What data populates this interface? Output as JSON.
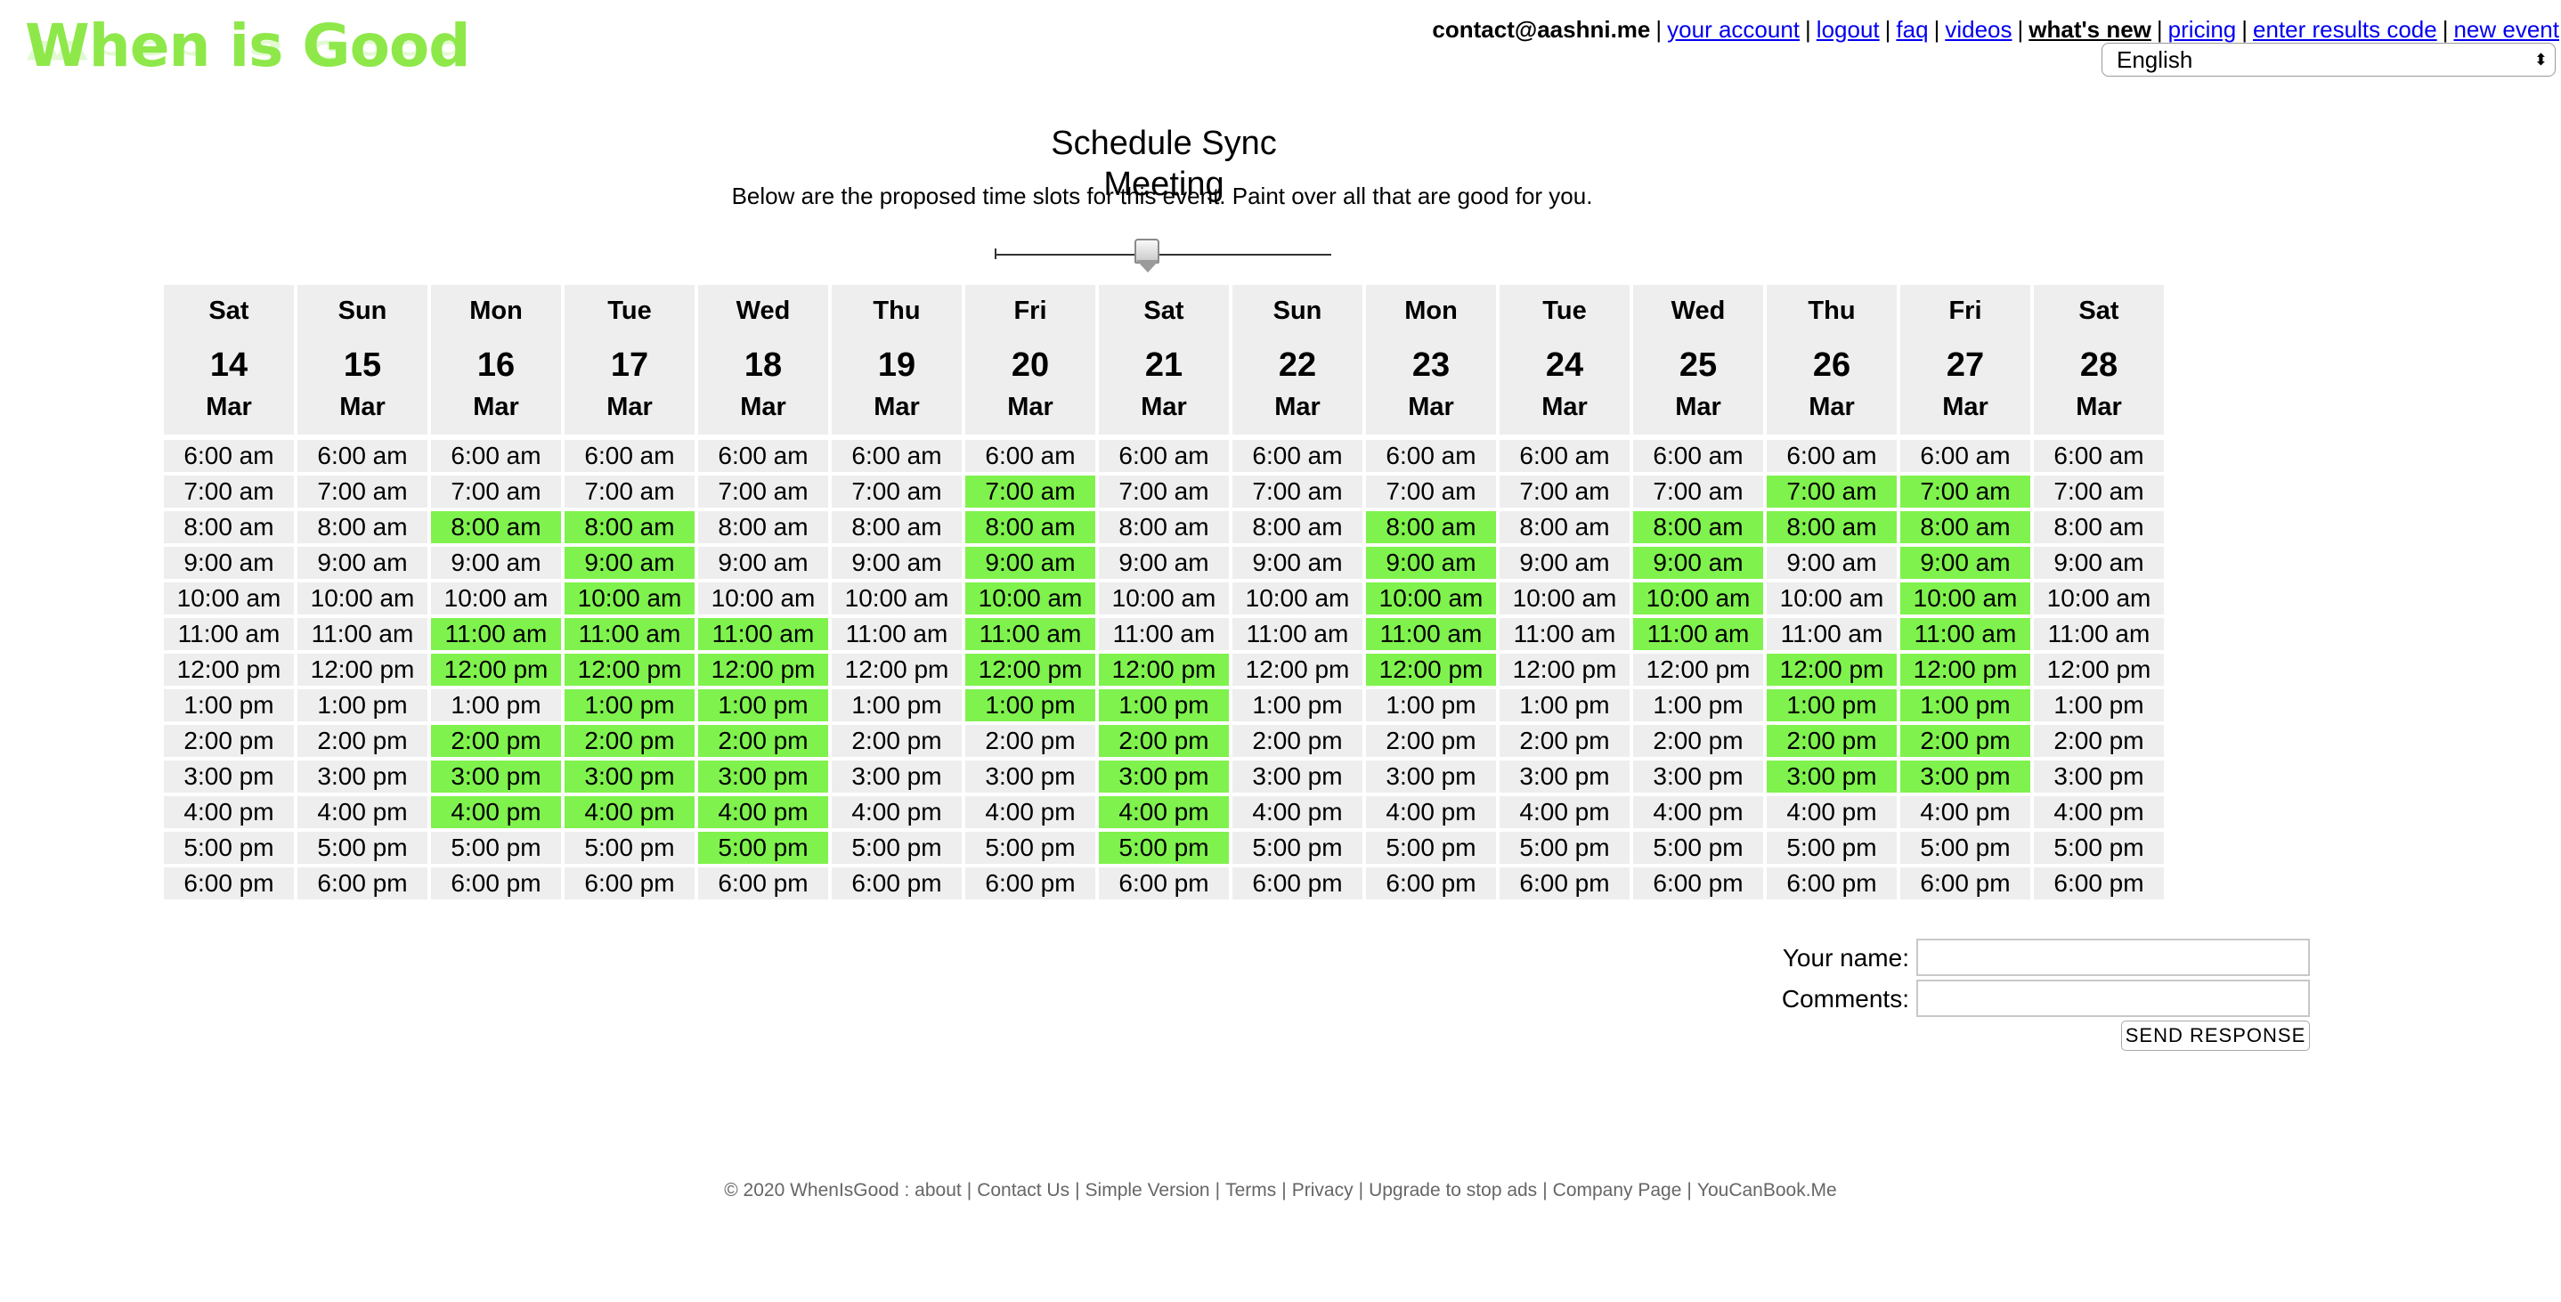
{
  "logo": "When is Good",
  "topnav": {
    "email": "contact@aashni.me",
    "links": [
      {
        "label": "your account",
        "bold": false
      },
      {
        "label": "logout",
        "bold": false
      },
      {
        "label": "faq",
        "bold": false
      },
      {
        "label": "videos",
        "bold": false
      },
      {
        "label": "what's new",
        "bold": true
      },
      {
        "label": "pricing",
        "bold": false
      },
      {
        "label": "enter results code",
        "bold": false
      },
      {
        "label": "new event",
        "bold": false
      }
    ],
    "language": "English"
  },
  "event": {
    "title": "Schedule Sync Meeting",
    "instructions": "Below are the proposed time slots for this event. Paint over all that are good for you."
  },
  "zoom_slider": {
    "value": 0.45
  },
  "colors": {
    "good": "#7ff24d",
    "slot": "#eeeeee",
    "logo": "#8ee84a"
  },
  "schedule": {
    "times": [
      "6:00 am",
      "7:00 am",
      "8:00 am",
      "9:00 am",
      "10:00 am",
      "11:00 am",
      "12:00 pm",
      "1:00 pm",
      "2:00 pm",
      "3:00 pm",
      "4:00 pm",
      "5:00 pm",
      "6:00 pm"
    ],
    "days": [
      {
        "dow": "Sat",
        "dom": "14",
        "mon": "Mar",
        "good": []
      },
      {
        "dow": "Sun",
        "dom": "15",
        "mon": "Mar",
        "good": []
      },
      {
        "dow": "Mon",
        "dom": "16",
        "mon": "Mar",
        "good": [
          "8:00 am",
          "11:00 am",
          "12:00 pm",
          "2:00 pm",
          "3:00 pm",
          "4:00 pm"
        ]
      },
      {
        "dow": "Tue",
        "dom": "17",
        "mon": "Mar",
        "good": [
          "8:00 am",
          "9:00 am",
          "10:00 am",
          "11:00 am",
          "12:00 pm",
          "1:00 pm",
          "2:00 pm",
          "3:00 pm",
          "4:00 pm"
        ]
      },
      {
        "dow": "Wed",
        "dom": "18",
        "mon": "Mar",
        "good": [
          "11:00 am",
          "12:00 pm",
          "1:00 pm",
          "2:00 pm",
          "3:00 pm",
          "4:00 pm",
          "5:00 pm"
        ]
      },
      {
        "dow": "Thu",
        "dom": "19",
        "mon": "Mar",
        "good": []
      },
      {
        "dow": "Fri",
        "dom": "20",
        "mon": "Mar",
        "good": [
          "7:00 am",
          "8:00 am",
          "9:00 am",
          "10:00 am",
          "11:00 am",
          "12:00 pm",
          "1:00 pm"
        ]
      },
      {
        "dow": "Sat",
        "dom": "21",
        "mon": "Mar",
        "good": [
          "12:00 pm",
          "1:00 pm",
          "2:00 pm",
          "3:00 pm",
          "4:00 pm",
          "5:00 pm"
        ]
      },
      {
        "dow": "Sun",
        "dom": "22",
        "mon": "Mar",
        "good": []
      },
      {
        "dow": "Mon",
        "dom": "23",
        "mon": "Mar",
        "good": [
          "8:00 am",
          "9:00 am",
          "10:00 am",
          "11:00 am",
          "12:00 pm"
        ]
      },
      {
        "dow": "Tue",
        "dom": "24",
        "mon": "Mar",
        "good": []
      },
      {
        "dow": "Wed",
        "dom": "25",
        "mon": "Mar",
        "good": [
          "8:00 am",
          "9:00 am",
          "10:00 am",
          "11:00 am"
        ]
      },
      {
        "dow": "Thu",
        "dom": "26",
        "mon": "Mar",
        "good": [
          "7:00 am",
          "8:00 am",
          "12:00 pm",
          "1:00 pm",
          "2:00 pm",
          "3:00 pm"
        ]
      },
      {
        "dow": "Fri",
        "dom": "27",
        "mon": "Mar",
        "good": [
          "7:00 am",
          "8:00 am",
          "9:00 am",
          "10:00 am",
          "11:00 am",
          "12:00 pm",
          "1:00 pm",
          "2:00 pm",
          "3:00 pm"
        ]
      },
      {
        "dow": "Sat",
        "dom": "28",
        "mon": "Mar",
        "good": []
      }
    ]
  },
  "form": {
    "name_label": "Your name:",
    "name_value": "",
    "comments_label": "Comments:",
    "comments_value": "",
    "send_label": "SEND RESPONSE"
  },
  "footer": {
    "items": [
      "© 2020 WhenIsGood : about",
      "Contact Us",
      "Simple Version",
      "Terms",
      "Privacy",
      "Upgrade to stop ads",
      "Company Page",
      "YouCanBook.Me"
    ]
  }
}
